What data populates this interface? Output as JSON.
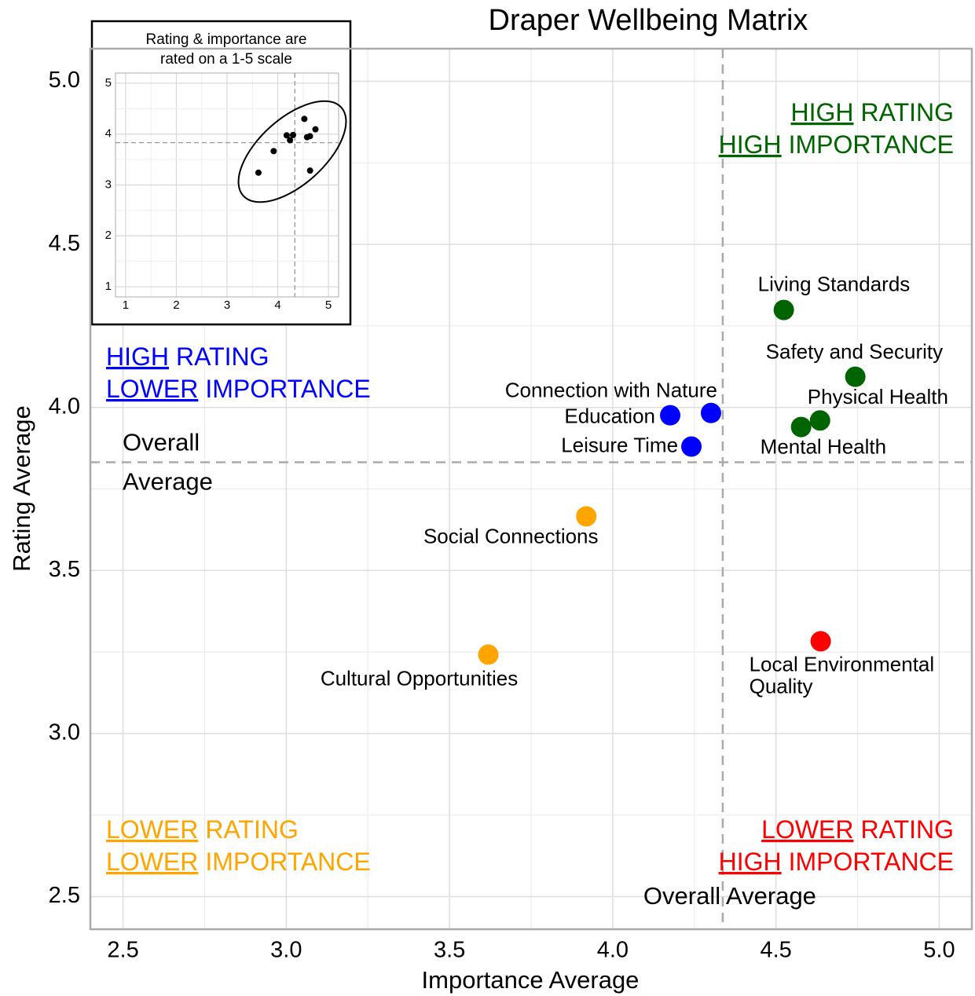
{
  "chart_data": {
    "type": "scatter",
    "title": "Draper Wellbeing Matrix",
    "x_label": "Importance Average",
    "y_label": "Rating Average",
    "xlim": [
      2.4,
      5.1
    ],
    "ylim": [
      2.4,
      5.1
    ],
    "xticks": [
      2.5,
      {
        "value": 3,
        "label": "3.0"
      },
      3.5,
      {
        "value": 4,
        "label": "4.0"
      },
      4.5,
      {
        "value": 5,
        "label": "5.0"
      }
    ],
    "yticks": [
      2.5,
      {
        "value": 3,
        "label": "3.0"
      },
      3.5,
      {
        "value": 4,
        "label": "4.0"
      },
      4.5,
      {
        "value": 5,
        "label": "5.0"
      }
    ],
    "grid": true,
    "mean_x": 4.337,
    "mean_y": 3.832,
    "mean_x_label": "Overall Average",
    "mean_y_label": [
      "Overall",
      "Average"
    ],
    "points": [
      {
        "label": [
          "Living Standards"
        ],
        "x": 4.524,
        "y": 4.299,
        "color": "#006400"
      },
      {
        "label": [
          "Safety and Security"
        ],
        "x": 4.743,
        "y": 4.094,
        "color": "#006400"
      },
      {
        "label": [
          "Physical Health"
        ],
        "x": 4.635,
        "y": 3.96,
        "color": "#006400"
      },
      {
        "label": [
          "Mental Health"
        ],
        "x": 4.577,
        "y": 3.94,
        "color": "#006400"
      },
      {
        "label": [
          "Connection with Nature"
        ],
        "x": 4.301,
        "y": 3.983,
        "color": "#0000ff"
      },
      {
        "label": [
          "Education"
        ],
        "x": 4.176,
        "y": 3.976,
        "color": "#0000ff"
      },
      {
        "label": [
          "Leisure Time"
        ],
        "x": 4.241,
        "y": 3.88,
        "color": "#0000ff"
      },
      {
        "label": [
          "Social Connections"
        ],
        "x": 3.919,
        "y": 3.666,
        "color": "#ffa500"
      },
      {
        "label": [
          "Cultural Opportunities"
        ],
        "x": 3.619,
        "y": 3.242,
        "color": "#ffa500"
      },
      {
        "label": [
          "Local Environmental",
          "Quality"
        ],
        "x": 4.637,
        "y": 3.283,
        "color": "#ff0000"
      }
    ],
    "quadrants": [
      {
        "corner": "top-right",
        "color": "#006400",
        "lines": [
          [
            "HIGH",
            "RATING"
          ],
          [
            "HIGH",
            "IMPORTANCE"
          ]
        ]
      },
      {
        "corner": "top-left",
        "color": "#0000ff",
        "lines": [
          [
            "HIGH",
            "RATING"
          ],
          [
            "LOWER",
            "IMPORTANCE"
          ]
        ]
      },
      {
        "corner": "bottom-left",
        "color": "#ffa500",
        "lines": [
          [
            "LOWER",
            "RATING"
          ],
          [
            "LOWER",
            "IMPORTANCE"
          ]
        ]
      },
      {
        "corner": "bottom-right",
        "color": "#ff0000",
        "lines": [
          [
            "LOWER",
            "RATING"
          ],
          [
            "HIGH",
            "IMPORTANCE"
          ]
        ]
      }
    ],
    "inset": {
      "note": [
        "Rating & importance are",
        "rated on a 1-5 scale"
      ],
      "xlim": [
        0.8,
        5.2
      ],
      "ylim": [
        0.8,
        5.2
      ],
      "xticks": [
        1,
        2,
        3,
        4,
        5
      ],
      "yticks": [
        1,
        2,
        3,
        4,
        5
      ]
    }
  }
}
